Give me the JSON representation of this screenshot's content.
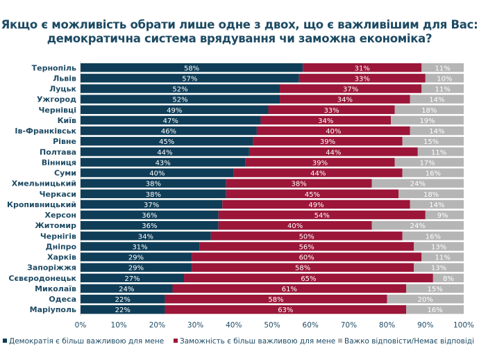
{
  "chart_data": {
    "type": "bar",
    "orientation": "horizontal",
    "stacked": true,
    "title_lines": [
      "Якщо є можливість обрати лише одне з двох, що є важливішим для Вас:",
      "демократична система врядування чи заможна економіка?"
    ],
    "xlim": [
      0,
      100
    ],
    "x_ticks": [
      "0%",
      "10%",
      "20%",
      "30%",
      "40%",
      "50%",
      "60%",
      "70%",
      "80%",
      "90%",
      "100%"
    ],
    "grid": false,
    "legend_position": "bottom",
    "categories": [
      "Тернопіль",
      "Львів",
      "Луцьк",
      "Ужгород",
      "Чернівці",
      "Київ",
      "Ів-Франківськ",
      "Рівне",
      "Полтава",
      "Вінниця",
      "Суми",
      "Хмельницький",
      "Черкаси",
      "Кропивницький",
      "Херсон",
      "Житомир",
      "Чернігів",
      "Дніпро",
      "Харків",
      "Запоріжжя",
      "Сєвєродонецьк",
      "Миколаїв",
      "Одеса",
      "Маріуполь"
    ],
    "series": [
      {
        "name": "Демократія є більш важливою для мене",
        "color": "#0f3d57",
        "values": [
          58,
          57,
          52,
          52,
          49,
          47,
          46,
          45,
          44,
          43,
          40,
          38,
          38,
          37,
          36,
          36,
          34,
          31,
          29,
          29,
          27,
          24,
          22,
          22
        ]
      },
      {
        "name": "Заможність є більш важливою для мене",
        "color": "#9b1638",
        "values": [
          31,
          33,
          37,
          34,
          33,
          34,
          40,
          39,
          44,
          39,
          44,
          38,
          45,
          49,
          54,
          40,
          50,
          56,
          60,
          58,
          65,
          61,
          58,
          63
        ]
      },
      {
        "name": "Важко відповісти/Немає відповіді",
        "color": "#b5b5b5",
        "values": [
          11,
          10,
          11,
          14,
          18,
          19,
          14,
          15,
          11,
          17,
          16,
          24,
          18,
          14,
          9,
          24,
          16,
          13,
          11,
          13,
          8,
          15,
          20,
          16
        ]
      }
    ]
  }
}
